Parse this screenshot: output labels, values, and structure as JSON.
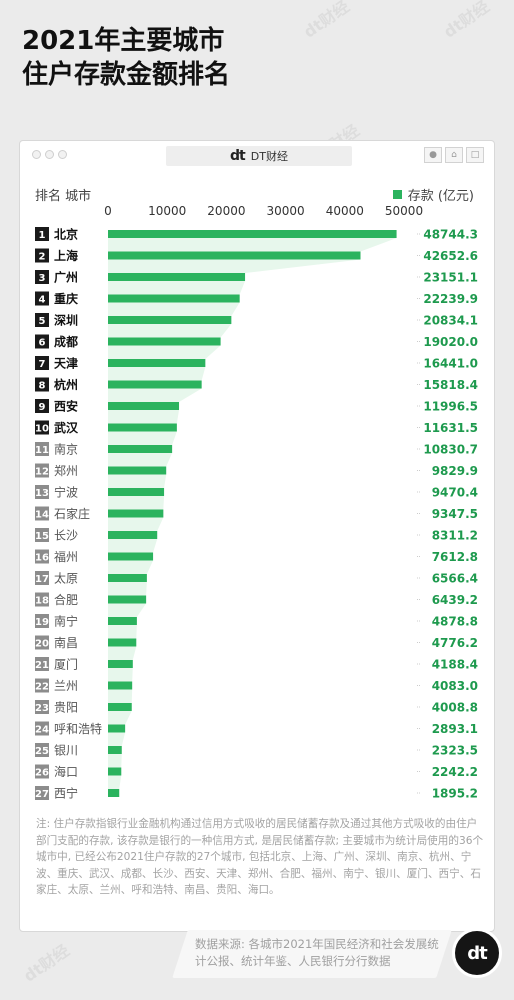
{
  "title_line1": "2021年主要城市",
  "title_line2": "住户存款金额排名",
  "brand": {
    "logo": "dt",
    "name": "DT财经"
  },
  "watermark": "dt财经",
  "chart_header": "排名 城市",
  "legend_label": "存款 (亿元)",
  "colors": {
    "bar": "#2bb35e",
    "value": "#1e9a4e",
    "area": "#e7f7ec",
    "rank_dark": "#1a1a1a",
    "rank_light": "#8c8c8c"
  },
  "chart_data": {
    "type": "bar",
    "orientation": "horizontal",
    "categories": [
      "北京",
      "上海",
      "广州",
      "重庆",
      "深圳",
      "成都",
      "天津",
      "杭州",
      "西安",
      "武汉",
      "南京",
      "郑州",
      "宁波",
      "石家庄",
      "长沙",
      "福州",
      "太原",
      "合肥",
      "南宁",
      "南昌",
      "厦门",
      "兰州",
      "贵阳",
      "呼和浩特",
      "银川",
      "海口",
      "西宁"
    ],
    "ranks": [
      "1",
      "2",
      "3",
      "4",
      "5",
      "6",
      "7",
      "8",
      "9",
      "10",
      "11",
      "12",
      "13",
      "14",
      "15",
      "16",
      "17",
      "18",
      "19",
      "20",
      "21",
      "22",
      "23",
      "24",
      "25",
      "26",
      "27"
    ],
    "values": [
      48744.3,
      42652.6,
      23151.1,
      22239.9,
      20834.1,
      19020.0,
      16441.0,
      15818.4,
      11996.5,
      11631.5,
      10830.7,
      9829.9,
      9470.4,
      9347.5,
      8311.2,
      7612.8,
      6566.4,
      6439.2,
      4878.8,
      4776.2,
      4188.4,
      4083.0,
      4008.8,
      2893.1,
      2323.5,
      2242.2,
      1895.2
    ],
    "value_labels": [
      "48744.3",
      "42652.6",
      "23151.1",
      "22239.9",
      "20834.1",
      "19020.0",
      "16441.0",
      "15818.4",
      "11996.5",
      "11631.5",
      "10830.7",
      "9829.9",
      "9470.4",
      "9347.5",
      "8311.2",
      "7612.8",
      "6566.4",
      "6439.2",
      "4878.8",
      "4776.2",
      "4188.4",
      "4083.0",
      "4008.8",
      "2893.1",
      "2323.5",
      "2242.2",
      "1895.2"
    ],
    "xticks": [
      "0",
      "10000",
      "20000",
      "30000",
      "40000",
      "50000"
    ],
    "xtick_values": [
      0,
      10000,
      20000,
      30000,
      40000,
      50000
    ],
    "xlim": [
      0,
      50000
    ],
    "highlight_count": 10,
    "legend": "存款 (亿元)"
  },
  "note": "注: 住户存款指银行业金融机构通过信用方式吸收的居民储蓄存款及通过其他方式吸收的由住户部门支配的存款, 该存款是银行的一种信用方式, 是居民储蓄存款; 主要城市为统计局使用的36个城市中, 已经公布2021住户存款的27个城市, 包括北京、上海、广州、深圳、南京、杭州、宁波、重庆、武汉、成都、长沙、西安、天津、郑州、合肥、福州、南宁、银川、厦门、西宁、石家庄、太原、兰州、呼和浩特、南昌、贵阳、海口。",
  "source": "数据来源: 各城市2021年国民经济和社会发展统计公报、统计年鉴、人民银行分行数据",
  "badge": "dt"
}
